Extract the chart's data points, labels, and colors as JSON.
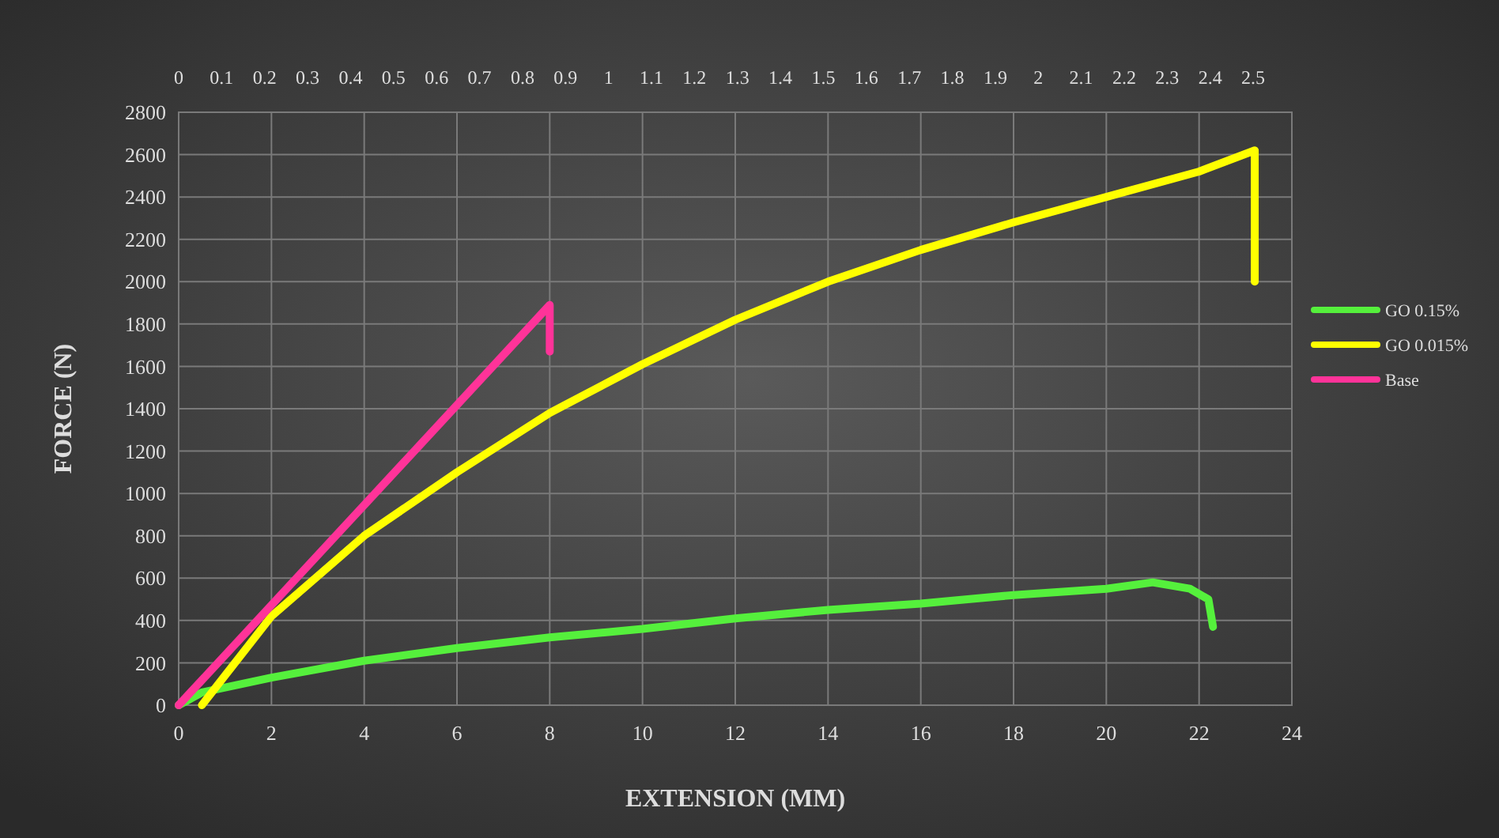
{
  "chart_data": {
    "type": "line",
    "xlabel": "EXTENSION (MM)",
    "ylabel": "FORCE (N)",
    "xlim": [
      0,
      24
    ],
    "xticks": [
      0,
      2,
      4,
      6,
      8,
      10,
      12,
      14,
      16,
      18,
      20,
      22,
      24
    ],
    "x2lim": [
      0,
      2.59
    ],
    "x2ticks": [
      0,
      0.1,
      0.2,
      0.3,
      0.4,
      0.5,
      0.6,
      0.7,
      0.8,
      0.9,
      1,
      1.1,
      1.2,
      1.3,
      1.4,
      1.5,
      1.6,
      1.7,
      1.8,
      1.9,
      2,
      2.1,
      2.2,
      2.3,
      2.4,
      2.5
    ],
    "ylim": [
      0,
      2800
    ],
    "yticks": [
      0,
      200,
      400,
      600,
      800,
      1000,
      1200,
      1400,
      1600,
      1800,
      2000,
      2200,
      2400,
      2600,
      2800
    ],
    "grid": true,
    "legend": "right",
    "marker": "none",
    "line_style": "solid",
    "series": [
      {
        "name": "GO 0.15%",
        "color": "#55f03c",
        "x": [
          0,
          0.5,
          2,
          4,
          6,
          8,
          10,
          12,
          14,
          16,
          18,
          20,
          21,
          21.8,
          22.2,
          22.3
        ],
        "values": [
          0,
          60,
          130,
          210,
          270,
          320,
          360,
          410,
          450,
          480,
          520,
          550,
          580,
          550,
          500,
          370
        ]
      },
      {
        "name": "GO 0.015%",
        "color": "#ffff00",
        "x": [
          0.5,
          2,
          4,
          6,
          8,
          10,
          12,
          14,
          16,
          18,
          20,
          22,
          23.2,
          23.2
        ],
        "values": [
          0,
          420,
          800,
          1100,
          1380,
          1610,
          1820,
          2000,
          2150,
          2280,
          2400,
          2520,
          2620,
          2000
        ]
      },
      {
        "name": "Base",
        "color": "#ff3399",
        "x": [
          0,
          8,
          8
        ],
        "values": [
          0,
          1890,
          1670
        ]
      }
    ]
  }
}
